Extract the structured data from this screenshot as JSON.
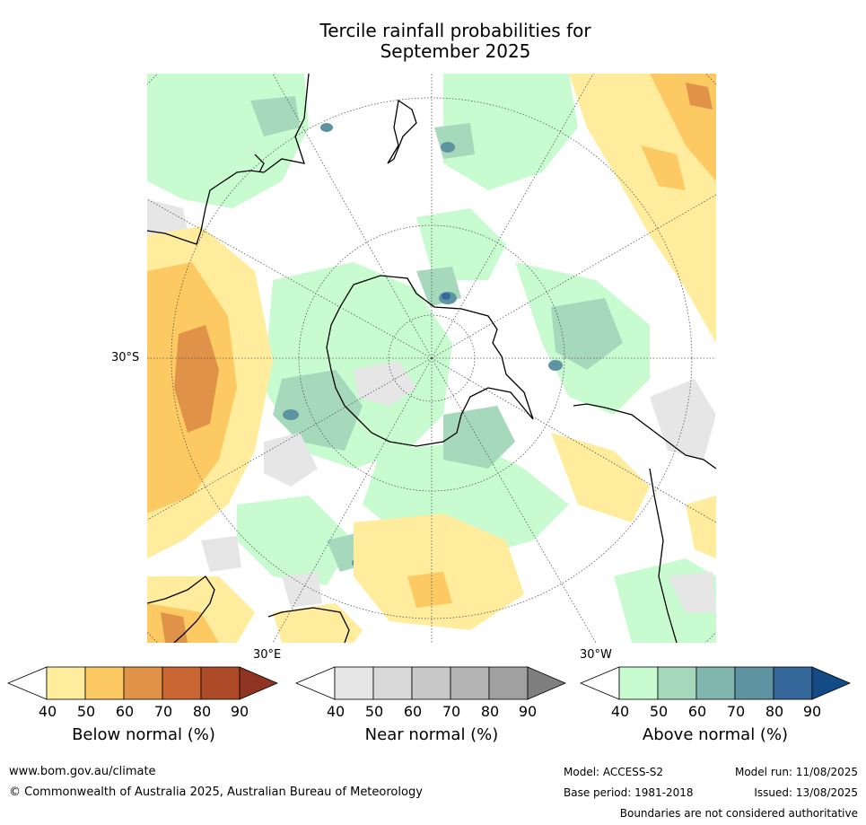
{
  "title": {
    "line1": "Tercile rainfall probabilities for",
    "line2": "September 2025"
  },
  "map": {
    "projection": "south polar stereographic",
    "labels": {
      "lat_30s": "30°S",
      "lon_30e": "30°E",
      "lon_30w": "30°W"
    },
    "background": "#ffffff",
    "coastline_color": "#000000",
    "graticule_color": "#555555"
  },
  "colorbars": [
    {
      "label": "Below normal (%)",
      "ticks": [
        "40",
        "50",
        "60",
        "70",
        "80",
        "90"
      ],
      "colors": [
        "#ffffff",
        "#ffec9c",
        "#fdc962",
        "#df9248",
        "#c96633",
        "#ad4b29",
        "#8f3422"
      ]
    },
    {
      "label": "Near normal (%)",
      "ticks": [
        "40",
        "50",
        "60",
        "70",
        "80",
        "90"
      ],
      "colors": [
        "#ffffff",
        "#e6e6e6",
        "#d9d9d9",
        "#c8c8c8",
        "#b4b4b4",
        "#a0a0a0",
        "#7f7f7f"
      ]
    },
    {
      "label": "Above normal (%)",
      "ticks": [
        "40",
        "50",
        "60",
        "70",
        "80",
        "90"
      ],
      "colors": [
        "#ffffff",
        "#c8fcd0",
        "#a6d8bc",
        "#80b6ae",
        "#5e93a2",
        "#36679a",
        "#134b87"
      ]
    }
  ],
  "footer": {
    "url": "www.bom.gov.au/climate",
    "copyright": "© Commonwealth of Australia 2025, Australian Bureau of Meteorology",
    "model": "Model: ACCESS-S2",
    "model_run": "Model run: 11/08/2025",
    "base_period": "Base period: 1981-2018",
    "issued": "Issued: 13/08/2025",
    "boundaries": "Boundaries are not considered authoritative"
  }
}
